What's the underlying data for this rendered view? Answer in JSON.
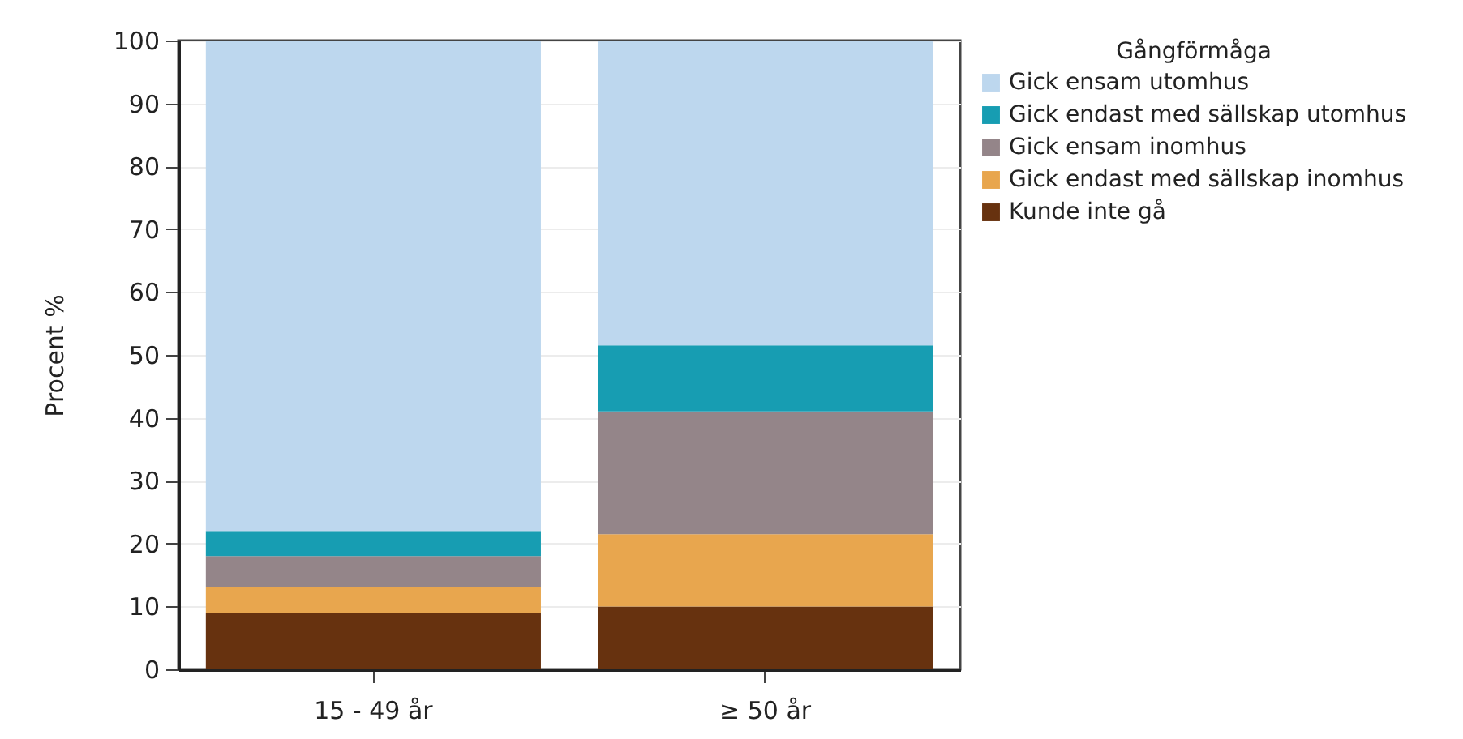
{
  "chart_data": {
    "type": "bar",
    "stacked": true,
    "ylabel": "Procent %",
    "legend_title": "Gångförmåga",
    "categories": [
      "15 - 49 år",
      "≥ 50 år"
    ],
    "series": [
      {
        "name": "Kunde inte gå",
        "color": "#67320f",
        "values": [
          9,
          10
        ]
      },
      {
        "name": "Gick endast med sällskap inomhus",
        "color": "#e8a64e",
        "values": [
          4,
          11.5
        ]
      },
      {
        "name": "Gick ensam inomhus",
        "color": "#948589",
        "values": [
          5,
          19.5
        ]
      },
      {
        "name": "Gick endast med sällskap utomhus",
        "color": "#179db2",
        "values": [
          4,
          10.5
        ]
      },
      {
        "name": "Gick ensam utomhus",
        "color": "#bdd7ee",
        "values": [
          78,
          48.5
        ]
      }
    ],
    "ylim": [
      0,
      100
    ],
    "yticks": [
      0,
      10,
      20,
      30,
      40,
      50,
      60,
      70,
      80,
      90,
      100
    ],
    "grid": "y",
    "legend": "right"
  }
}
